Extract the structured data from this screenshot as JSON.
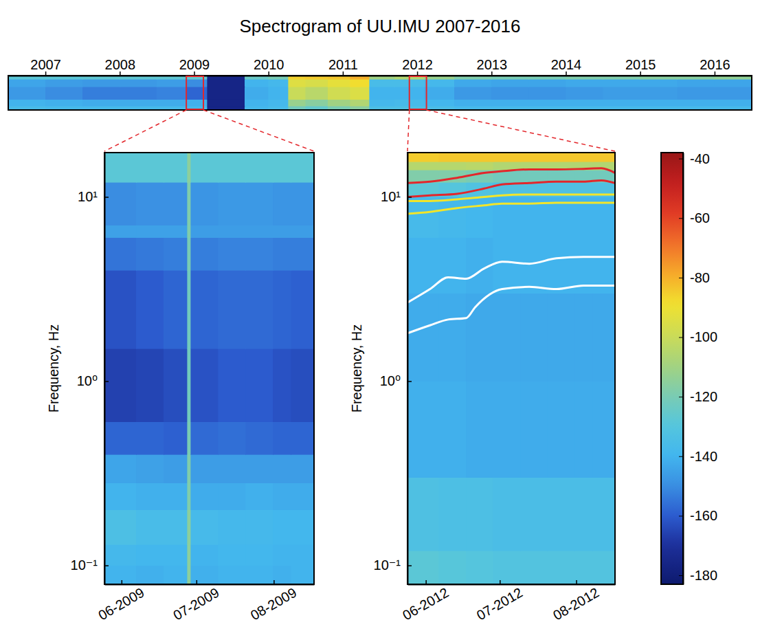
{
  "chart_data": [
    {
      "type": "heatmap",
      "title": "Spectrogram of UU.IMU 2007-2016",
      "x_edges": [
        2007,
        2007.5,
        2008,
        2008.5,
        2009,
        2009.4,
        2009.68,
        2010.18,
        2010.5,
        2010.77,
        2011,
        2011.3,
        2011.6,
        2011.86,
        2012.2,
        2012.6,
        2013,
        2013.5,
        2014,
        2014.5,
        2015,
        2015.5,
        2016,
        2016.5,
        2017
      ],
      "y_edges": [
        0.079,
        0.15,
        0.4,
        3,
        10,
        17.4
      ],
      "values": [
        [
          -136,
          -137,
          -137,
          -137,
          -137,
          -138,
          -176,
          -138,
          -136,
          -122,
          -126,
          -120,
          -116,
          -134,
          -134,
          -135,
          -137,
          -137,
          -137,
          -137,
          -137,
          -137,
          -137,
          -137
        ],
        [
          -140,
          -141,
          -142,
          -142,
          -142,
          -141,
          -176,
          -140,
          -138,
          -112,
          -116,
          -110,
          -106,
          -138,
          -137,
          -139,
          -141,
          -141,
          -141,
          -141,
          -141,
          -141,
          -141,
          -141
        ],
        [
          -147,
          -150,
          -153,
          -153,
          -152,
          -158,
          -176,
          -142,
          -140,
          -100,
          -104,
          -98,
          -95,
          -140,
          -140,
          -142,
          -147,
          -148,
          -148,
          -147,
          -146,
          -146,
          -147,
          -147
        ],
        [
          -144,
          -146,
          -147,
          -147,
          -146,
          -150,
          -176,
          -140,
          -138,
          -94,
          -96,
          -92,
          -88,
          -136,
          -136,
          -138,
          -143,
          -144,
          -144,
          -143,
          -143,
          -143,
          -144,
          -144
        ],
        [
          -128,
          -128,
          -127,
          -127,
          -127,
          -126,
          -176,
          -124,
          -120,
          -86,
          -85,
          -84,
          -80,
          -110,
          -106,
          -112,
          -118,
          -120,
          -120,
          -118,
          -118,
          -116,
          -116,
          -114
        ]
      ],
      "xlim": [
        2007,
        2017
      ],
      "ylim": [
        0.079,
        17.4
      ],
      "log": "y",
      "tick_labels": "x",
      "xticks": [
        {
          "value": 2007.5,
          "label": "2007"
        },
        {
          "value": 2008.5,
          "label": "2008"
        },
        {
          "value": 2009.5,
          "label": "2009"
        },
        {
          "value": 2010.5,
          "label": "2010"
        },
        {
          "value": 2011.5,
          "label": "2011"
        },
        {
          "value": 2012.5,
          "label": "2012"
        },
        {
          "value": 2013.5,
          "label": "2013"
        },
        {
          "value": 2014.5,
          "label": "2014"
        },
        {
          "value": 2015.5,
          "label": "2015"
        },
        {
          "value": 2016.5,
          "label": "2016"
        }
      ]
    },
    {
      "type": "heatmap",
      "y_label": "Frequency, Hz",
      "x_edges": [
        2009.395,
        2009.43,
        2009.46,
        2009.486,
        2009.49,
        2009.52,
        2009.55,
        2009.58,
        2009.6,
        2009.625
      ],
      "y_edges": [
        0.079,
        0.1,
        0.13,
        0.2,
        0.28,
        0.4,
        0.6,
        1.5,
        4,
        6,
        7,
        12,
        17.4
      ],
      "values": [
        [
          -140,
          -141,
          -140,
          -115,
          -141,
          -140,
          -140,
          -141,
          -140
        ],
        [
          -138,
          -139,
          -139,
          -115,
          -140,
          -139,
          -139,
          -140,
          -140
        ],
        [
          -134,
          -136,
          -136,
          -115,
          -137,
          -138,
          -138,
          -139,
          -139
        ],
        [
          -140,
          -141,
          -141,
          -118,
          -142,
          -142,
          -141,
          -142,
          -142
        ],
        [
          -144,
          -145,
          -146,
          -118,
          -146,
          -146,
          -146,
          -146,
          -146
        ],
        [
          -158,
          -158,
          -159,
          -120,
          -157,
          -156,
          -157,
          -158,
          -158
        ],
        [
          -166,
          -165,
          -163,
          -122,
          -162,
          -160,
          -160,
          -162,
          -163
        ],
        [
          -162,
          -160,
          -158,
          -122,
          -158,
          -157,
          -157,
          -158,
          -159
        ],
        [
          -155,
          -154,
          -153,
          -120,
          -153,
          -152,
          -152,
          -153,
          -153
        ],
        [
          -145,
          -145,
          -145,
          -118,
          -146,
          -146,
          -146,
          -146,
          -146
        ],
        [
          -150,
          -149,
          -149,
          -118,
          -148,
          -147,
          -147,
          -148,
          -148
        ],
        [
          -128,
          -128,
          -128,
          -115,
          -128,
          -128,
          -128,
          -128,
          -128
        ]
      ],
      "xlim": [
        2009.395,
        2009.625
      ],
      "ylim": [
        0.079,
        17.4
      ],
      "log": "y",
      "xticks": [
        {
          "value": 2009.4137,
          "label": "06-2009"
        },
        {
          "value": 2009.4959,
          "label": "07-2009"
        },
        {
          "value": 2009.5808,
          "label": "08-2009"
        }
      ],
      "yticks": [
        {
          "value": 0.1,
          "label": "10⁻¹"
        },
        {
          "value": 1,
          "label": "10⁰"
        },
        {
          "value": 10,
          "label": "10¹"
        }
      ]
    },
    {
      "type": "heatmap",
      "y_label": "Frequency, Hz",
      "x_edges": [
        2012.395,
        2012.43,
        2012.46,
        2012.49,
        2012.52,
        2012.55,
        2012.58,
        2012.6,
        2012.625
      ],
      "y_edges": [
        0.079,
        0.12,
        0.3,
        1,
        3,
        6,
        10,
        12,
        14,
        15.5,
        17.4
      ],
      "values": [
        [
          -128,
          -129,
          -130,
          -131,
          -131,
          -131,
          -131,
          -131
        ],
        [
          -133,
          -134,
          -134,
          -135,
          -135,
          -135,
          -135,
          -135
        ],
        [
          -141,
          -141,
          -142,
          -142,
          -142,
          -142,
          -142,
          -142
        ],
        [
          -142,
          -142,
          -143,
          -143,
          -143,
          -143,
          -143,
          -143
        ],
        [
          -140,
          -140,
          -141,
          -140,
          -140,
          -140,
          -140,
          -140
        ],
        [
          -137,
          -138,
          -139,
          -140,
          -140,
          -140,
          -140,
          -140
        ],
        [
          -128,
          -130,
          -132,
          -133,
          -133,
          -133,
          -133,
          -133
        ],
        [
          -118,
          -118,
          -120,
          -122,
          -122,
          -122,
          -122,
          -122
        ],
        [
          -105,
          -105,
          -104,
          -106,
          -106,
          -106,
          -106,
          -106
        ],
        [
          -85,
          -84,
          -84,
          -84,
          -84,
          -84,
          -84,
          -84
        ]
      ],
      "xlim": [
        2012.395,
        2012.625
      ],
      "ylim": [
        0.079,
        17.4
      ],
      "log": "y",
      "xticks": [
        {
          "value": 2012.4153,
          "label": "06-2012"
        },
        {
          "value": 2012.4973,
          "label": "07-2012"
        },
        {
          "value": 2012.582,
          "label": "08-2012"
        }
      ],
      "yticks": [
        {
          "value": 0.1,
          "label": "10⁻¹"
        },
        {
          "value": 1,
          "label": "10⁰"
        },
        {
          "value": 10,
          "label": "10¹"
        }
      ],
      "series": [
        {
          "type": "line",
          "color": "#e3262b",
          "x": [
            2012.395,
            2012.42,
            2012.45,
            2012.48,
            2012.5,
            2012.53,
            2012.56,
            2012.59,
            2012.61,
            2012.625
          ],
          "values": [
            11.9,
            12.1,
            12.7,
            13.5,
            13.8,
            14.1,
            14.1,
            14.2,
            14.3,
            13.5
          ]
        },
        {
          "type": "line",
          "color": "#e3262b",
          "x": [
            2012.395,
            2012.42,
            2012.45,
            2012.48,
            2012.5,
            2012.53,
            2012.56,
            2012.59,
            2012.61,
            2012.625
          ],
          "values": [
            10.0,
            10.2,
            10.4,
            11.1,
            11.7,
            11.9,
            12.1,
            12.1,
            12.3,
            11.9
          ]
        },
        {
          "type": "line",
          "color": "#f2e52a",
          "x": [
            2012.395,
            2012.42,
            2012.45,
            2012.48,
            2012.5,
            2012.53,
            2012.56,
            2012.59,
            2012.61,
            2012.625
          ],
          "values": [
            9.5,
            9.5,
            9.7,
            10.0,
            10.2,
            10.3,
            10.3,
            10.3,
            10.3,
            10.3
          ]
        },
        {
          "type": "line",
          "color": "#f2e52a",
          "x": [
            2012.395,
            2012.42,
            2012.45,
            2012.48,
            2012.5,
            2012.53,
            2012.56,
            2012.59,
            2012.61,
            2012.625
          ],
          "values": [
            8.1,
            8.3,
            8.7,
            9.0,
            9.2,
            9.2,
            9.3,
            9.3,
            9.3,
            9.3
          ]
        },
        {
          "type": "line",
          "color": "#ffffff",
          "x": [
            2012.395,
            2012.42,
            2012.44,
            2012.46,
            2012.48,
            2012.5,
            2012.53,
            2012.56,
            2012.59,
            2012.625
          ],
          "values": [
            2.67,
            3.16,
            3.66,
            3.6,
            4.09,
            4.45,
            4.34,
            4.64,
            4.72,
            4.72
          ]
        },
        {
          "type": "line",
          "color": "#ffffff",
          "x": [
            2012.395,
            2012.42,
            2012.44,
            2012.46,
            2012.47,
            2012.5,
            2012.53,
            2012.56,
            2012.59,
            2012.625
          ],
          "values": [
            1.82,
            2.01,
            2.16,
            2.2,
            2.52,
            3.16,
            3.25,
            3.16,
            3.3,
            3.3
          ]
        }
      ]
    }
  ],
  "colorbar": {
    "lim": [
      -183,
      -38
    ],
    "ticks": [
      -40,
      -60,
      -80,
      -100,
      -120,
      -140,
      -160,
      -180
    ]
  }
}
